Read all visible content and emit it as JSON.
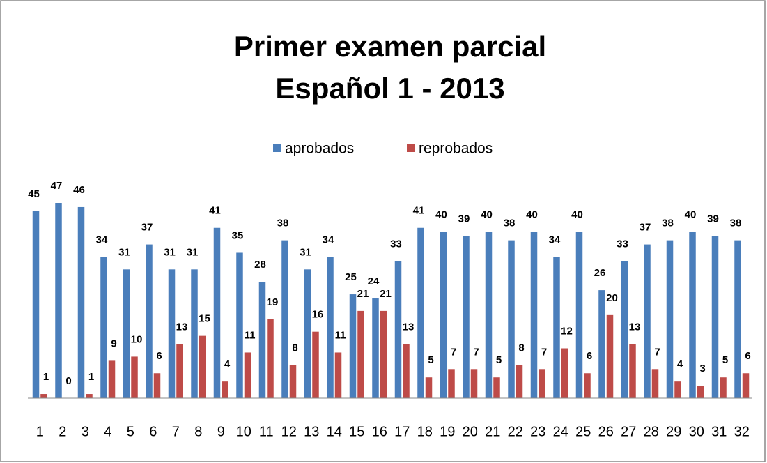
{
  "chart_data": {
    "type": "bar",
    "title": [
      "Primer examen parcial",
      "Español 1 - 2013"
    ],
    "categories": [
      1,
      2,
      3,
      4,
      5,
      6,
      7,
      8,
      9,
      10,
      11,
      12,
      13,
      14,
      15,
      16,
      17,
      18,
      19,
      20,
      21,
      22,
      23,
      24,
      25,
      26,
      27,
      28,
      29,
      30,
      31,
      32
    ],
    "series": [
      {
        "name": "aprobados",
        "color": "#4a7ebb",
        "values": [
          45,
          47,
          46,
          34,
          31,
          37,
          31,
          31,
          41,
          35,
          28,
          38,
          31,
          34,
          25,
          24,
          33,
          41,
          40,
          39,
          40,
          38,
          40,
          34,
          40,
          26,
          33,
          37,
          38,
          40,
          39,
          38
        ]
      },
      {
        "name": "reprobados",
        "color": "#be4b48",
        "values": [
          1,
          0,
          1,
          9,
          10,
          6,
          13,
          15,
          4,
          11,
          19,
          8,
          16,
          11,
          21,
          21,
          13,
          5,
          7,
          7,
          5,
          8,
          7,
          12,
          6,
          20,
          13,
          7,
          4,
          3,
          5,
          6
        ]
      }
    ],
    "legend": "top"
  }
}
